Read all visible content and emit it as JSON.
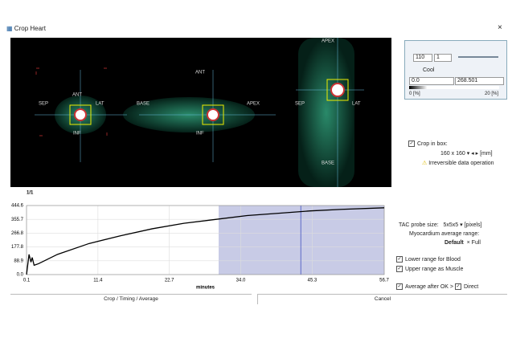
{
  "window": {
    "title": "Crop Heart"
  },
  "views": [
    {
      "labels": [
        "ANT",
        "SEP",
        "LAT",
        "INF"
      ]
    },
    {
      "labels": [
        "ANT",
        "BASE",
        "APEX",
        "INF"
      ]
    },
    {
      "labels": [
        "APEX",
        "SEP",
        "LAT",
        "BASE"
      ]
    }
  ],
  "plot": {
    "type": "line",
    "page_label": "1/1",
    "xlabel": "minutes",
    "color": "#000000",
    "x": [
      0.1,
      0.5,
      0.8,
      1.0,
      1.3,
      2,
      5,
      10,
      15,
      20,
      25,
      30,
      35,
      40,
      45,
      50,
      56.7
    ],
    "values": [
      0,
      130,
      80,
      110,
      60,
      70,
      130,
      200,
      250,
      295,
      330,
      355,
      380,
      395,
      410,
      420,
      430
    ],
    "xlim": [
      0.1,
      56.7
    ],
    "ylim": [
      0,
      444.6
    ],
    "xticks": [
      0.1,
      11.4,
      22.7,
      {
        "value": 34,
        "label": "34.0"
      },
      45.3,
      56.7
    ],
    "yticks": [
      {
        "value": 0,
        "label": "0.0"
      },
      88.9,
      177.8,
      266.8,
      355.7,
      444.6
    ],
    "highlight": [
      30.5,
      56.7
    ],
    "cursor": 43.5
  },
  "controls": {
    "slice": "110",
    "step": "1",
    "colormap": "Cool",
    "min": "0.0",
    "max": "268.501",
    "low_pct": "0 [%]",
    "high_pct": "20 [%]",
    "crop_in_box": "Crop in box:",
    "box_size": "160 x 160",
    "box_unit": "[mm]",
    "warning": "Irreversible data operation",
    "probe_label": "TAC probe size:",
    "probe_size": "5x5x5",
    "probe_unit": "[pixels]",
    "range_label": "Myocardium average range:",
    "default": "Default",
    "full": "Full",
    "lower": "Lower range for Blood",
    "upper": "Upper range as Muscle",
    "average": "Average after OK >",
    "direct": "Direct"
  },
  "buttons": [
    "Crop / Timing / Average",
    "Cancel"
  ]
}
